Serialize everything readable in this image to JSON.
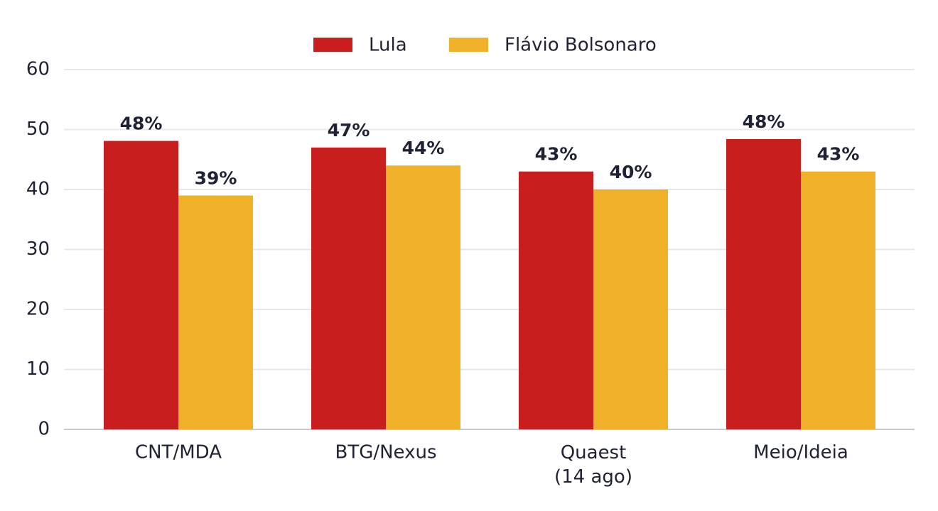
{
  "chart_data": {
    "type": "bar",
    "categories": [
      "CNT/MDA",
      "BTG/Nexus",
      "Quaest\n(14 ago)",
      "Meio/Ideia"
    ],
    "series": [
      {
        "name": "Lula",
        "color": "#c81e1e",
        "values": [
          48.1,
          47,
          43,
          48.4
        ],
        "value_labels": [
          "48%",
          "47%",
          "43%",
          "48%"
        ]
      },
      {
        "name": "Flávio Bolsonaro",
        "color": "#eeb128",
        "values": [
          39,
          44,
          40,
          43
        ],
        "value_labels": [
          "39%",
          "44%",
          "40%",
          "43%"
        ]
      }
    ],
    "ylim": [
      0,
      60
    ],
    "yticks": [
      0,
      10,
      20,
      30,
      40,
      50,
      60
    ],
    "grid": true,
    "legend": "top"
  }
}
